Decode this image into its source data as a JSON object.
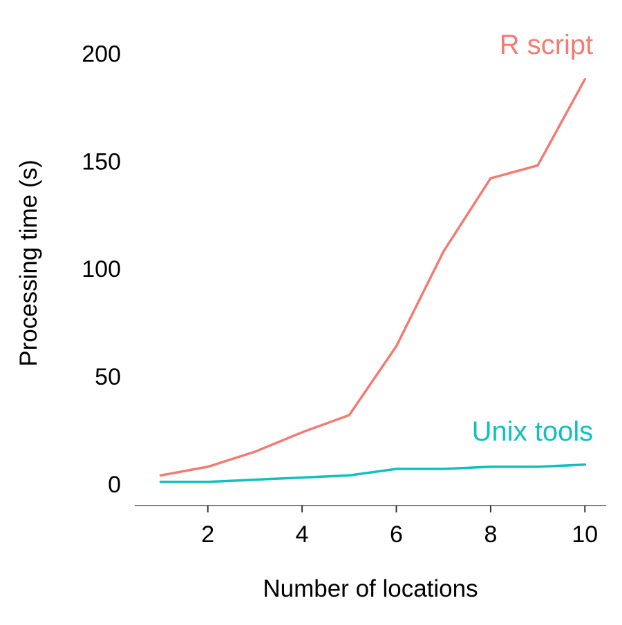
{
  "chart_data": {
    "type": "line",
    "title": "",
    "xlabel": "Number of locations",
    "ylabel": "Processing time (s)",
    "x": [
      1,
      2,
      3,
      4,
      5,
      6,
      7,
      8,
      9,
      10
    ],
    "xlim": [
      0.45,
      10.45
    ],
    "ylim": [
      -10,
      212
    ],
    "xticks": [
      2,
      4,
      6,
      8,
      10
    ],
    "yticks": [
      0,
      50,
      100,
      150,
      200
    ],
    "grid": false,
    "series": [
      {
        "name": "R script",
        "color": "#F27B72",
        "values": [
          4,
          8,
          15,
          24,
          32,
          64,
          108,
          142,
          148,
          188
        ]
      },
      {
        "name": "Unix tools",
        "color": "#10BFBF",
        "values": [
          1,
          1,
          2,
          3,
          4,
          7,
          7,
          8,
          8,
          9
        ]
      }
    ]
  }
}
